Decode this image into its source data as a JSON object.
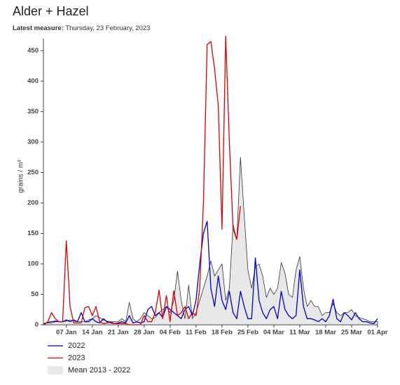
{
  "chart_data": {
    "type": "line",
    "title": "Alder + Hazel",
    "subtitle_label": "Latest measure:",
    "subtitle": "Thursday, 23 February, 2023",
    "y_label": "grains / m³",
    "categories": [
      null,
      null,
      null,
      null,
      null,
      null,
      "07 Jan",
      null,
      null,
      null,
      null,
      null,
      null,
      "14 Jan",
      null,
      null,
      null,
      null,
      null,
      null,
      "21 Jan",
      null,
      null,
      null,
      null,
      null,
      null,
      "28 Jan",
      null,
      null,
      null,
      null,
      null,
      null,
      "04 Feb",
      null,
      null,
      null,
      null,
      null,
      null,
      "11 Feb",
      null,
      null,
      null,
      null,
      null,
      null,
      "18 Feb",
      null,
      null,
      null,
      null,
      null,
      null,
      "25 Feb",
      null,
      null,
      null,
      null,
      null,
      null,
      "04 Mar",
      null,
      null,
      null,
      null,
      null,
      null,
      "11 Mar",
      null,
      null,
      null,
      null,
      null,
      null,
      "18 Mar",
      null,
      null,
      null,
      null,
      null,
      null,
      "25 Mar",
      null,
      null,
      null,
      null,
      null,
      null,
      "01 Apr"
    ],
    "ylim": [
      0,
      470
    ],
    "yticks": [
      0,
      50,
      100,
      150,
      200,
      250,
      300,
      350,
      400,
      450
    ],
    "series": [
      {
        "name": "Mean 2013 - 2022",
        "color": "#333333",
        "fill": "#e8e8e8",
        "area": true,
        "values": [
          2,
          3,
          3,
          5,
          5,
          5,
          6,
          8,
          6,
          5,
          5,
          5,
          8,
          10,
          15,
          12,
          8,
          6,
          5,
          5,
          5,
          10,
          5,
          37,
          10,
          5,
          10,
          20,
          15,
          10,
          12,
          20,
          25,
          30,
          20,
          40,
          88,
          40,
          10,
          65,
          10,
          20,
          40,
          60,
          80,
          105,
          80,
          90,
          100,
          40,
          60,
          165,
          140,
          275,
          180,
          90,
          60,
          95,
          100,
          80,
          45,
          60,
          50,
          60,
          102,
          85,
          50,
          45,
          90,
          112,
          60,
          30,
          40,
          30,
          30,
          15,
          20,
          20,
          35,
          20,
          15,
          20,
          20,
          25,
          15,
          12,
          10,
          8,
          5,
          5,
          5
        ]
      },
      {
        "name": "2022",
        "color": "#0000cc",
        "values": [
          2,
          4,
          5,
          6,
          5,
          5,
          8,
          5,
          8,
          5,
          20,
          5,
          5,
          10,
          5,
          3,
          10,
          5,
          3,
          2,
          3,
          5,
          3,
          15,
          3,
          5,
          3,
          5,
          25,
          30,
          15,
          20,
          12,
          30,
          25,
          20,
          15,
          10,
          25,
          30,
          15,
          40,
          100,
          150,
          170,
          60,
          30,
          80,
          40,
          25,
          55,
          20,
          10,
          55,
          30,
          10,
          10,
          110,
          40,
          20,
          10,
          25,
          30,
          10,
          55,
          25,
          15,
          10,
          15,
          90,
          30,
          10,
          10,
          8,
          5,
          10,
          5,
          15,
          42,
          10,
          5,
          20,
          15,
          8,
          20,
          10,
          5,
          5,
          3,
          2,
          10
        ]
      },
      {
        "name": "2023",
        "color": "#dd0000",
        "values": [
          0,
          5,
          20,
          10,
          5,
          5,
          138,
          30,
          3,
          3,
          3,
          28,
          30,
          15,
          30,
          5,
          2,
          3,
          5,
          2,
          2,
          2,
          2,
          0,
          0,
          0,
          0,
          15,
          5,
          5,
          20,
          57,
          10,
          48,
          5,
          56,
          15,
          20,
          30,
          10,
          20,
          15,
          60,
          200,
          460,
          465,
          420,
          360,
          157,
          474,
          300,
          158,
          140,
          195,
          null,
          null,
          null,
          null,
          null,
          null,
          null,
          null,
          null,
          null,
          null,
          null,
          null,
          null,
          null,
          null,
          null,
          null,
          null,
          null,
          null,
          null,
          null,
          null,
          null,
          null,
          null,
          null,
          null,
          null,
          null,
          null,
          null,
          null,
          null,
          null,
          null
        ]
      }
    ]
  }
}
